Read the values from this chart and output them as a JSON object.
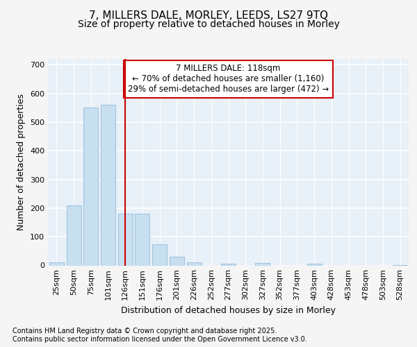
{
  "title_line1": "7, MILLERS DALE, MORLEY, LEEDS, LS27 9TQ",
  "title_line2": "Size of property relative to detached houses in Morley",
  "xlabel": "Distribution of detached houses by size in Morley",
  "ylabel": "Number of detached properties",
  "bar_categories": [
    "25sqm",
    "50sqm",
    "75sqm",
    "101sqm",
    "126sqm",
    "151sqm",
    "176sqm",
    "201sqm",
    "226sqm",
    "252sqm",
    "277sqm",
    "302sqm",
    "327sqm",
    "352sqm",
    "377sqm",
    "403sqm",
    "428sqm",
    "453sqm",
    "478sqm",
    "503sqm",
    "528sqm"
  ],
  "bar_values": [
    10,
    210,
    550,
    560,
    180,
    180,
    75,
    30,
    12,
    0,
    5,
    0,
    8,
    0,
    0,
    5,
    0,
    0,
    0,
    0,
    2
  ],
  "bar_color": "#c8dff0",
  "bar_edgecolor": "#a0c4e0",
  "vline_x": 4,
  "vline_color": "#cc0000",
  "annotation_text": "7 MILLERS DALE: 118sqm\n← 70% of detached houses are smaller (1,160)\n29% of semi-detached houses are larger (472) →",
  "annotation_box_facecolor": "#ffffff",
  "annotation_box_edgecolor": "#cc0000",
  "ylim": [
    0,
    720
  ],
  "yticks": [
    0,
    100,
    200,
    300,
    400,
    500,
    600,
    700
  ],
  "footer_line1": "Contains HM Land Registry data © Crown copyright and database right 2025.",
  "footer_line2": "Contains public sector information licensed under the Open Government Licence v3.0.",
  "fig_facecolor": "#f5f5f5",
  "plot_facecolor": "#e8f0f8",
  "grid_color": "#ffffff",
  "title_fontsize": 11,
  "subtitle_fontsize": 10,
  "axis_label_fontsize": 9,
  "tick_fontsize": 8,
  "annotation_fontsize": 8.5,
  "footer_fontsize": 7
}
